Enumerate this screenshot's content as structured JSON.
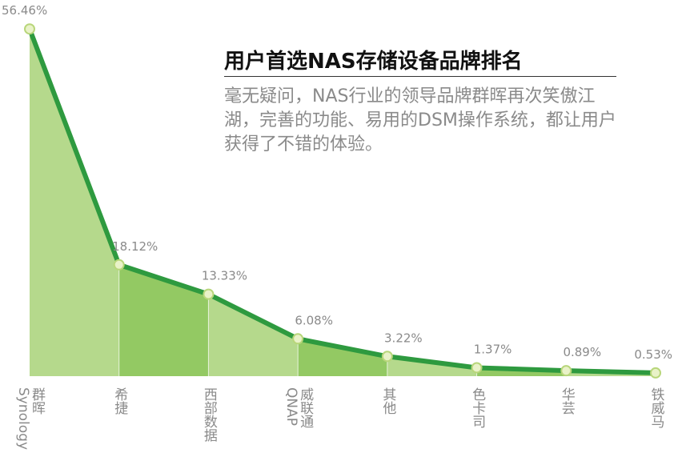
{
  "chart_data": {
    "type": "area",
    "title": "用户首选NAS存储设备品牌排名",
    "subtitle": "毫无疑问，NAS行业的领导品牌群晖再次笑傲江湖，完善的功能、易用的DSM操作系统，都让用户获得了不错的体验。",
    "categories": [
      "群晖\nSynology",
      "希捷",
      "西部数据",
      "威联通\nQNAP",
      "其他",
      "色卡司",
      "华芸",
      "铁威马"
    ],
    "values": [
      56.46,
      18.12,
      13.33,
      6.08,
      3.22,
      1.37,
      0.89,
      0.53
    ],
    "value_labels": [
      "56.46%",
      "18.12%",
      "13.33%",
      "6.08%",
      "3.22%",
      "1.37%",
      "0.89%",
      "0.53%"
    ],
    "ylim": [
      0,
      60
    ],
    "color": "#2e9a3f",
    "fill_colors": [
      "#b5d98c",
      "#93c963"
    ]
  }
}
